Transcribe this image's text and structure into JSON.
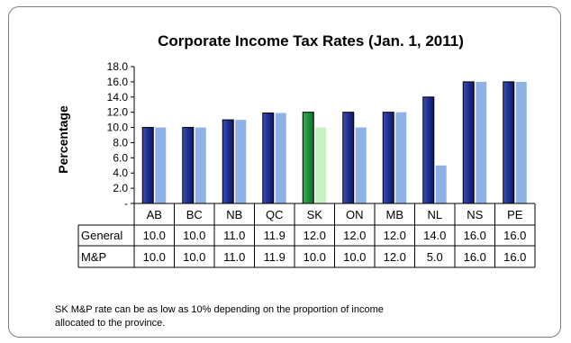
{
  "chart_data": {
    "type": "bar",
    "title": "Corporate Income Tax Rates (Jan. 1, 2011)",
    "ylabel": "Percentage",
    "xlabel": "",
    "ylim": [
      0,
      18
    ],
    "yticks": [
      "-",
      "2.0",
      "4.0",
      "6.0",
      "8.0",
      "10.0",
      "12.0",
      "14.0",
      "16.0",
      "18.0"
    ],
    "categories": [
      "AB",
      "BC",
      "NB",
      "QC",
      "SK",
      "ON",
      "MB",
      "NL",
      "NS",
      "PE"
    ],
    "series": [
      {
        "name": "General",
        "values": [
          10.0,
          10.0,
          11.0,
          11.9,
          12.0,
          12.0,
          12.0,
          14.0,
          16.0,
          16.0
        ],
        "display": [
          "10.0",
          "10.0",
          "11.0",
          "11.9",
          "12.0",
          "12.0",
          "12.0",
          "14.0",
          "16.0",
          "16.0"
        ]
      },
      {
        "name": "M&P",
        "values": [
          10.0,
          10.0,
          11.0,
          11.9,
          10.0,
          10.0,
          12.0,
          5.0,
          16.0,
          16.0
        ],
        "display": [
          "10.0",
          "10.0",
          "11.0",
          "11.9",
          "10.0",
          "10.0",
          "12.0",
          "5.0",
          "16.0",
          "16.0"
        ]
      }
    ],
    "highlight_category": "SK",
    "colors": {
      "general": "#1f2f8f",
      "mp": "#8fb2e6",
      "sk_general": "#1e8c3a",
      "sk_mp": "#c9f2c2"
    },
    "grid": false,
    "legend": "data table below chart"
  },
  "footnote": {
    "line1": "SK M&P rate  can be as low as 10% depending on the proportion of income",
    "line2": "allocated to the province."
  }
}
